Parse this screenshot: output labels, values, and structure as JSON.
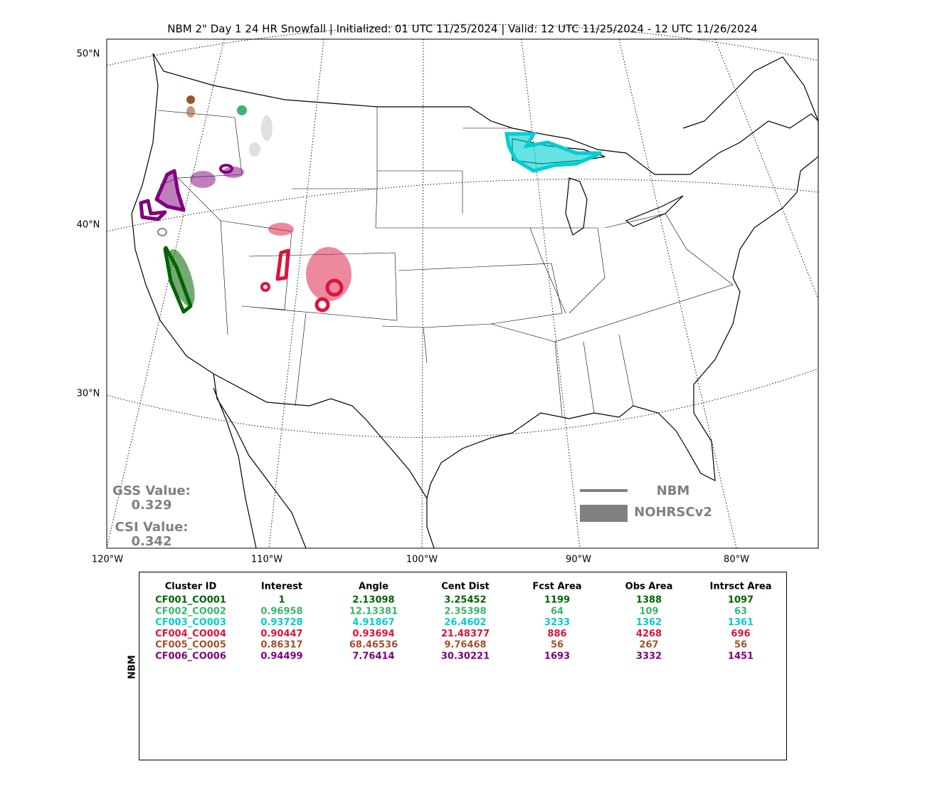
{
  "title": "NBM 2\" Day 1 24 HR Snowfall | Initialized: 01 UTC 11/25/2024 | Valid: 12 UTC 11/25/2024 - 12 UTC 11/26/2024",
  "map": {
    "lat_labels": [
      "50°N",
      "40°N",
      "30°N"
    ],
    "lon_labels": [
      "120°W",
      "110°W",
      "100°W",
      "90°W",
      "80°W"
    ],
    "scores": [
      {
        "label": "GSS Value:",
        "value": "0.329"
      },
      {
        "label": "CSI Value:",
        "value": "0.342"
      }
    ],
    "legend": [
      "NBM",
      "NOHRSCv2"
    ]
  },
  "table": {
    "side_label": "NBM",
    "columns": [
      "Cluster ID",
      "Interest",
      "Angle",
      "Cent Dist",
      "Fcst Area",
      "Obs Area",
      "Intrsct Area"
    ],
    "rows": [
      {
        "color": "#006400",
        "cells": [
          "CF001_CO001",
          "1",
          "2.13098",
          "3.25452",
          "1199",
          "1388",
          "1097"
        ]
      },
      {
        "color": "#3cb371",
        "cells": [
          "CF002_CO002",
          "0.96958",
          "12.13381",
          "2.35398",
          "64",
          "109",
          "63"
        ]
      },
      {
        "color": "#00ced1",
        "cells": [
          "CF003_CO003",
          "0.93728",
          "4.91867",
          "26.4602",
          "3233",
          "1362",
          "1361"
        ]
      },
      {
        "color": "#dc143c",
        "cells": [
          "CF004_CO004",
          "0.90447",
          "0.93694",
          "21.48377",
          "886",
          "4268",
          "696"
        ]
      },
      {
        "color": "#a0522d",
        "cells": [
          "CF005_CO005",
          "0.86317",
          "68.46536",
          "9.76468",
          "56",
          "267",
          "56"
        ]
      },
      {
        "color": "#800080",
        "cells": [
          "CF006_CO006",
          "0.94499",
          "7.76414",
          "30.30221",
          "1693",
          "3332",
          "1451"
        ]
      }
    ]
  }
}
